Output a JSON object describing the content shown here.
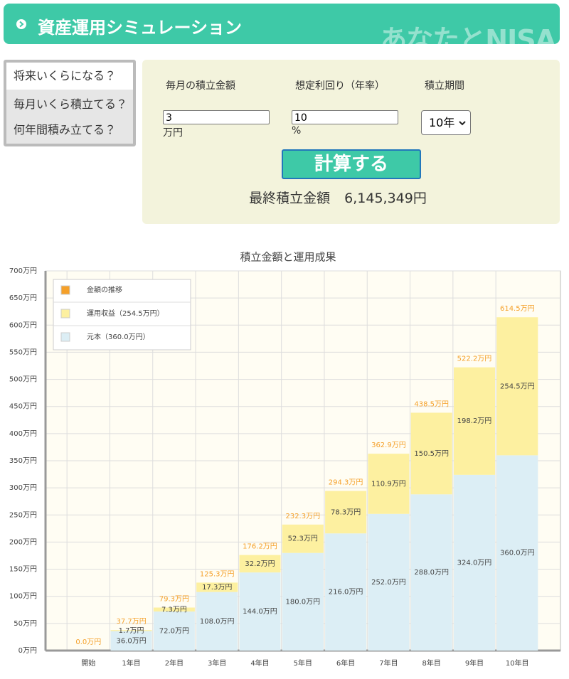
{
  "header": {
    "title": "資産運用シミュレーション",
    "logo": "あなたとNISA"
  },
  "menu": {
    "items": [
      "将来いくらになる？",
      "毎月いくら積立てる？",
      "何年間積み立てる？"
    ]
  },
  "form": {
    "fields": [
      {
        "label": "毎月の積立金額",
        "value": "3",
        "unit": "万円"
      },
      {
        "label": "想定利回り（年率）",
        "value": "10",
        "unit": "%"
      }
    ],
    "period": {
      "label": "積立期間",
      "value": "10年"
    },
    "button": "計算する",
    "result": {
      "label": "最終積立金額",
      "value": "6,145,349円"
    }
  },
  "chart_data": {
    "type": "bar",
    "title": "積立金額と運用成果",
    "categories": [
      "開始",
      "1年目",
      "2年目",
      "3年目",
      "4年目",
      "5年目",
      "6年目",
      "7年目",
      "8年目",
      "9年目",
      "10年目"
    ],
    "series": [
      {
        "name": "金額の推移",
        "color": "#f5a029",
        "values": [
          0,
          37.7,
          79.3,
          125.3,
          176.2,
          232.3,
          294.3,
          362.9,
          438.5,
          522.2,
          614.5
        ],
        "value_labels": [
          "0.0万円",
          "37.7万円",
          "79.3万円",
          "125.3万円",
          "176.2万円",
          "232.3万円",
          "294.3万円",
          "362.9万円",
          "438.5万円",
          "522.2万円",
          "614.5万円"
        ]
      },
      {
        "name": "運用収益（254.5万円）",
        "color": "#fdf0a0",
        "values": [
          0,
          1.7,
          7.3,
          17.3,
          32.2,
          52.3,
          78.3,
          110.9,
          150.5,
          198.2,
          254.5
        ],
        "value_labels": [
          null,
          "1.7万円",
          "7.3万円",
          "17.3万円",
          "32.2万円",
          "52.3万円",
          "78.3万円",
          "110.9万円",
          "150.5万円",
          "198.2万円",
          "254.5万円"
        ]
      },
      {
        "name": "元本（360.0万円）",
        "color": "#dceef5",
        "values": [
          0,
          36,
          72,
          108,
          144,
          180,
          216,
          252,
          288,
          324,
          360
        ],
        "value_labels": [
          null,
          "36.0万円",
          "72.0万円",
          "108.0万円",
          "144.0万円",
          "180.0万円",
          "216.0万円",
          "252.0万円",
          "288.0万円",
          "324.0万円",
          "360.0万円"
        ]
      }
    ],
    "ylim": [
      0,
      700
    ],
    "yticks": [
      {
        "value": 0,
        "label": "0万円"
      },
      {
        "value": 50,
        "label": "50万円"
      },
      {
        "value": 100,
        "label": "100万円"
      },
      {
        "value": 150,
        "label": "150万円"
      },
      {
        "value": 200,
        "label": "200万円"
      },
      {
        "value": 250,
        "label": "250万円"
      },
      {
        "value": 300,
        "label": "300万円"
      },
      {
        "value": 350,
        "label": "350万円"
      },
      {
        "value": 400,
        "label": "400万円"
      },
      {
        "value": 450,
        "label": "450万円"
      },
      {
        "value": 500,
        "label": "500万円"
      },
      {
        "value": 550,
        "label": "550万円"
      },
      {
        "value": 600,
        "label": "600万円"
      },
      {
        "value": 650,
        "label": "650万円"
      },
      {
        "value": 700,
        "label": "700万円"
      }
    ],
    "grid": true
  }
}
